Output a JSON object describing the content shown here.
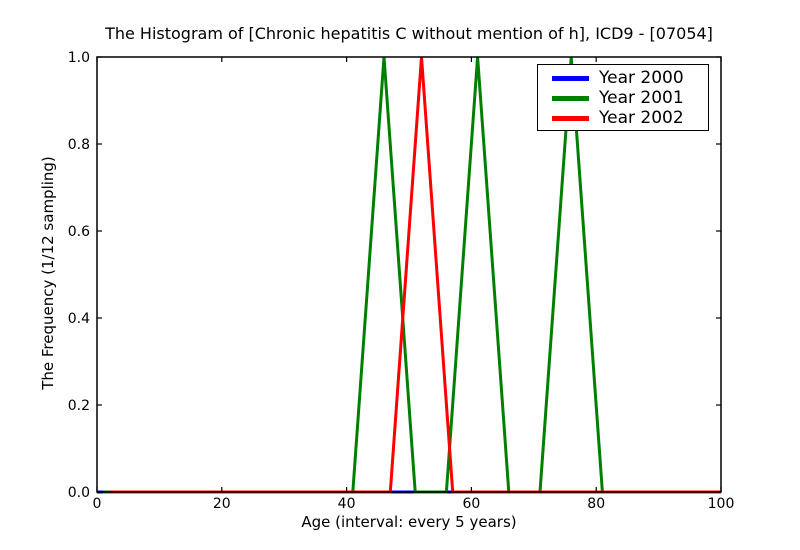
{
  "chart_data": {
    "type": "line",
    "title": "The Histogram of [Chronic hepatitis C without mention of h], ICD9 - [07054]",
    "xlabel": "Age (interval: every 5 years)",
    "ylabel": "The Frequency (1/12 sampling)",
    "xlim": [
      0,
      100
    ],
    "ylim": [
      0.0,
      1.0
    ],
    "xticks": [
      "0",
      "20",
      "40",
      "60",
      "80",
      "100"
    ],
    "yticks": [
      "0.0",
      "0.2",
      "0.4",
      "0.6",
      "0.8",
      "1.0"
    ],
    "grid": false,
    "legend_position": "upper-right",
    "bin_interval_years": 5,
    "series": [
      {
        "name": "Year 2000",
        "color": "#0000ff",
        "points": [
          [
            0,
            0.0
          ],
          [
            100,
            0.0
          ]
        ]
      },
      {
        "name": "Year 2001",
        "color": "#008000",
        "points": [
          [
            1,
            0.0
          ],
          [
            41,
            0.0
          ],
          [
            46,
            1.0
          ],
          [
            51,
            0.0
          ],
          [
            56,
            0.0
          ],
          [
            61,
            1.0
          ],
          [
            66,
            0.0
          ],
          [
            71,
            0.0
          ],
          [
            76,
            1.0
          ],
          [
            81,
            0.0
          ],
          [
            96,
            0.0
          ]
        ]
      },
      {
        "name": "Year 2002",
        "color": "#ff0000",
        "points": [
          [
            2,
            0.0
          ],
          [
            47,
            0.0
          ],
          [
            52,
            1.0
          ],
          [
            57,
            0.0
          ],
          [
            100,
            0.0
          ]
        ]
      }
    ]
  }
}
